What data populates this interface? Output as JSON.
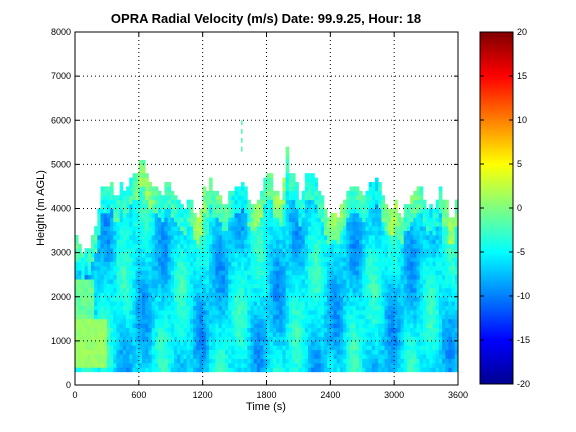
{
  "chart_data": {
    "type": "heatmap",
    "title": "OPRA Radial Velocity (m/s)  Date: 99.9.25, Hour: 18",
    "xlabel": "Time (s)",
    "ylabel": "Height (m AGL)",
    "xlim": [
      0,
      3600
    ],
    "ylim": [
      0,
      8000
    ],
    "xticks": [
      "0",
      "600",
      "1200",
      "1800",
      "2400",
      "3000",
      "3600"
    ],
    "yticks": [
      "0",
      "1000",
      "2000",
      "3000",
      "4000",
      "5000",
      "6000",
      "7000",
      "8000"
    ],
    "grid": true,
    "colorbar": {
      "range": [
        -20,
        20
      ],
      "ticks": [
        "20",
        "15",
        "10",
        "5",
        "0",
        "-5",
        "-10",
        "-15",
        "-20"
      ],
      "colormap": "jet"
    },
    "data_extent": {
      "height_min_m": 300,
      "time_bin_s": 30,
      "height_bin_m": 100,
      "echo_top_m": [
        [
          0,
          3450
        ],
        [
          60,
          3000
        ],
        [
          120,
          3100
        ],
        [
          180,
          3400
        ],
        [
          240,
          4400
        ],
        [
          300,
          4550
        ],
        [
          360,
          4200
        ],
        [
          420,
          4500
        ],
        [
          480,
          4400
        ],
        [
          540,
          4700
        ],
        [
          600,
          4950
        ],
        [
          660,
          4800
        ],
        [
          720,
          4500
        ],
        [
          780,
          4200
        ],
        [
          840,
          4500
        ],
        [
          900,
          4400
        ],
        [
          960,
          4000
        ],
        [
          1020,
          4100
        ],
        [
          1080,
          4050
        ],
        [
          1140,
          3900
        ],
        [
          1200,
          4300
        ],
        [
          1260,
          4600
        ],
        [
          1320,
          4300
        ],
        [
          1380,
          4000
        ],
        [
          1440,
          4200
        ],
        [
          1500,
          4400
        ],
        [
          1560,
          4600
        ],
        [
          1620,
          4100
        ],
        [
          1680,
          4100
        ],
        [
          1740,
          4450
        ],
        [
          1800,
          4900
        ],
        [
          1860,
          4500
        ],
        [
          1920,
          4200
        ],
        [
          1980,
          5250
        ],
        [
          2040,
          4600
        ],
        [
          2100,
          4300
        ],
        [
          2160,
          4700
        ],
        [
          2220,
          4800
        ],
        [
          2280,
          4300
        ],
        [
          2340,
          4000
        ],
        [
          2400,
          3800
        ],
        [
          2460,
          3900
        ],
        [
          2520,
          4300
        ],
        [
          2580,
          4550
        ],
        [
          2640,
          4400
        ],
        [
          2700,
          4200
        ],
        [
          2760,
          4650
        ],
        [
          2820,
          4550
        ],
        [
          2880,
          4200
        ],
        [
          2940,
          4000
        ],
        [
          3000,
          4000
        ],
        [
          3060,
          3900
        ],
        [
          3120,
          4050
        ],
        [
          3180,
          4500
        ],
        [
          3240,
          4300
        ],
        [
          3300,
          4000
        ],
        [
          3360,
          4050
        ],
        [
          3420,
          4300
        ],
        [
          3480,
          4000
        ],
        [
          3540,
          3700
        ],
        [
          3600,
          4500
        ]
      ]
    },
    "velocity_field": {
      "note_values_m_s": "mostly -3 to -12; near-ground strip at 0-300 s, 300-1500 m about +1",
      "typical_velocity": -6
    }
  }
}
